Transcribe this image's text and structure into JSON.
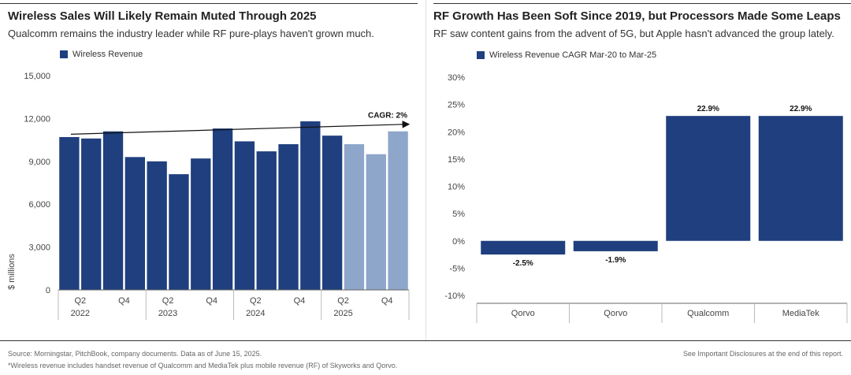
{
  "colors": {
    "dark": "#1f3f7e",
    "light": "#8ea6c9",
    "axis": "#666666",
    "grid": "#dddddd"
  },
  "left": {
    "title": "Wireless Sales Will Likely Remain Muted Through 2025",
    "subtitle": "Qualcomm remains the industry leader while RF pure-plays haven't grown much.",
    "legend": "Wireless Revenue",
    "ylabel": "$ millions",
    "cagr_label": "CAGR: 2%"
  },
  "right": {
    "title": "RF Growth Has Been Soft Since 2019, but Processors Made Some Leaps",
    "subtitle": "RF saw content gains from the advent of 5G, but Apple hasn't advanced the group lately.",
    "legend": "Wireless Revenue CAGR Mar-20 to Mar-25"
  },
  "chart_data": [
    {
      "type": "bar",
      "title": "Wireless Sales Will Likely Remain Muted Through 2025",
      "ylabel": "$ millions",
      "ylim": [
        0,
        15000
      ],
      "yticks": [
        "0",
        "3,000",
        "6,000",
        "9,000",
        "12,000",
        "15,000"
      ],
      "ytick_values": [
        0,
        3000,
        6000,
        9000,
        12000,
        15000
      ],
      "series": [
        {
          "name": "Wireless Revenue",
          "values": [
            10700,
            10600,
            11100,
            9300,
            9000,
            8100,
            9200,
            11300,
            10400,
            9700,
            10200,
            11800,
            10800,
            10200,
            9500,
            11100
          ],
          "projected": [
            false,
            false,
            false,
            false,
            false,
            false,
            false,
            false,
            false,
            false,
            false,
            false,
            false,
            true,
            true,
            true
          ]
        }
      ],
      "xticks": [
        {
          "index": 1,
          "quarter": "Q2",
          "year": "2022"
        },
        {
          "index": 3,
          "quarter": "Q4",
          "year": ""
        },
        {
          "index": 5,
          "quarter": "Q2",
          "year": "2023"
        },
        {
          "index": 7,
          "quarter": "Q4",
          "year": ""
        },
        {
          "index": 9,
          "quarter": "Q2",
          "year": "2024"
        },
        {
          "index": 11,
          "quarter": "Q4",
          "year": ""
        },
        {
          "index": 13,
          "quarter": "Q2",
          "year": "2025"
        },
        {
          "index": 15,
          "quarter": "Q4",
          "year": ""
        }
      ],
      "annotation": {
        "text": "CAGR: 2%",
        "trend_start": 10900,
        "trend_end": 11600
      }
    },
    {
      "type": "bar",
      "title": "RF Growth Has Been Soft Since 2019, but Processors Made Some Leaps",
      "ylim": [
        -10,
        30
      ],
      "yticks": [
        "-10%",
        "-5%",
        "0%",
        "5%",
        "10%",
        "15%",
        "20%",
        "25%",
        "30%"
      ],
      "ytick_values": [
        -10,
        -5,
        0,
        5,
        10,
        15,
        20,
        25,
        30
      ],
      "categories": [
        "Qorvo",
        "Qorvo",
        "Qualcomm",
        "MediaTek"
      ],
      "series": [
        {
          "name": "Wireless Revenue CAGR Mar-20 to Mar-25",
          "values": [
            -2.5,
            -1.9,
            22.9,
            22.9
          ]
        }
      ],
      "data_labels": [
        "-2.5%",
        "-1.9%",
        "22.9%",
        "22.9%"
      ]
    }
  ],
  "footer": {
    "source": "Source: Morningstar, PitchBook, company documents. Data as of June 15, 2025.",
    "note": "*Wireless revenue includes handset revenue of Qualcomm and MediaTek plus mobile revenue (RF) of Skyworks and Qorvo.",
    "disclosure": "See Important Disclosures at the end of this report."
  }
}
